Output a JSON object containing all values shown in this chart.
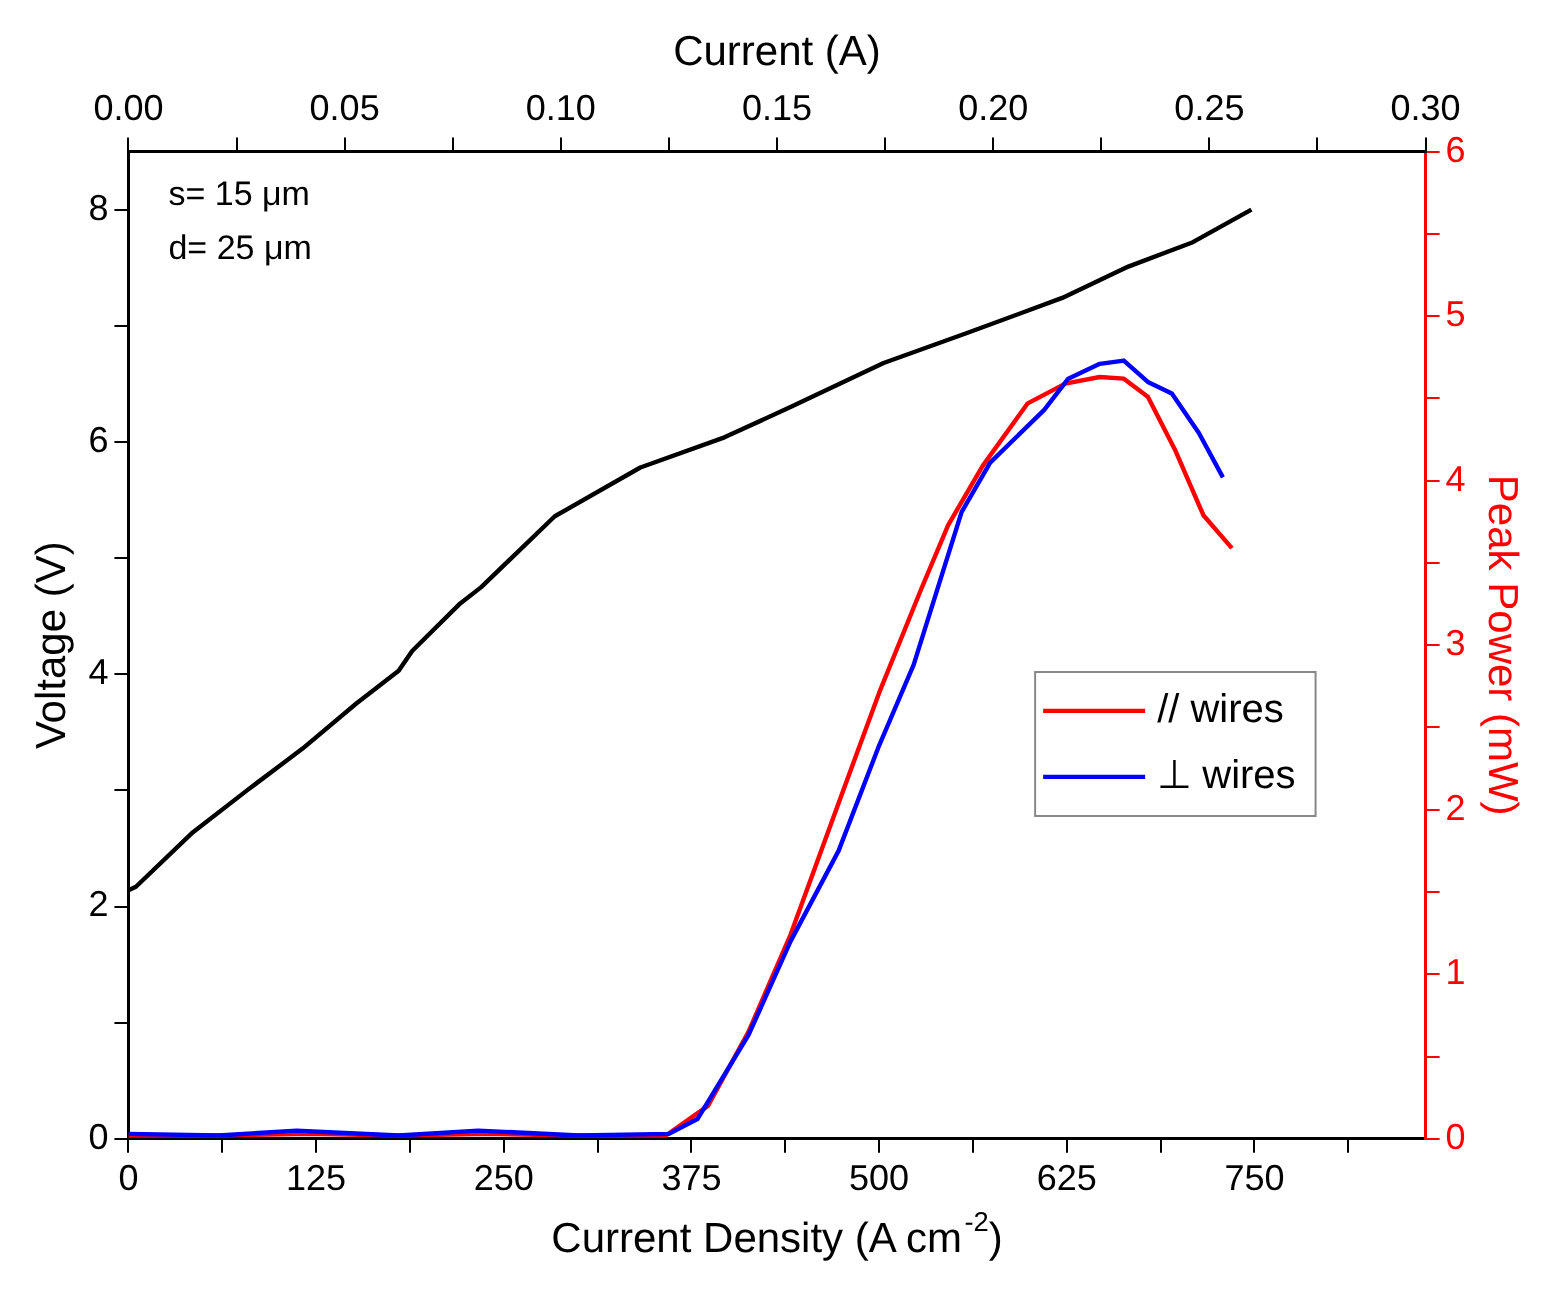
{
  "chart_data": {
    "type": "line",
    "xlabel": "Current Density (A cm$^{-2}$)",
    "ylabel": "Voltage (V)",
    "y2label": "Peak Power (mW)",
    "x2label": "Current (A)",
    "xlim": [
      0,
      864
    ],
    "xticks": [
      0,
      {
        "value": 62.5,
        "label": null
      },
      125,
      {
        "value": 187.5,
        "label": null
      },
      250,
      {
        "value": 312.5,
        "label": null
      },
      375,
      {
        "value": 437.5,
        "label": null
      },
      500,
      {
        "value": 562.5,
        "label": null
      },
      625,
      {
        "value": 687.5,
        "label": null
      },
      750,
      {
        "value": 812.5,
        "label": null
      }
    ],
    "ylim": [
      0,
      8.5
    ],
    "yticks": [
      0,
      {
        "value": 1,
        "label": null
      },
      2,
      {
        "value": 3,
        "label": null
      },
      4,
      {
        "value": 5,
        "label": null
      },
      6,
      {
        "value": 7,
        "label": null
      },
      8
    ],
    "y2lim": [
      0,
      6
    ],
    "y2ticks": [
      0,
      {
        "value": 0.5,
        "label": null
      },
      1,
      {
        "value": 1.5,
        "label": null
      },
      2,
      {
        "value": 2.5,
        "label": null
      },
      3,
      {
        "value": 3.5,
        "label": null
      },
      4,
      {
        "value": 4.5,
        "label": null
      },
      5,
      {
        "value": 5.5,
        "label": null
      },
      6
    ],
    "x2lim": [
      0,
      0.3
    ],
    "x2ticks": [
      {
        "value": 0,
        "label": "0.00"
      },
      {
        "value": 0.025,
        "label": null
      },
      {
        "value": 0.05,
        "label": "0.05"
      },
      {
        "value": 0.075,
        "label": null
      },
      {
        "value": 0.1,
        "label": "0.10"
      },
      {
        "value": 0.125,
        "label": null
      },
      {
        "value": 0.15,
        "label": "0.15"
      },
      {
        "value": 0.175,
        "label": null
      },
      {
        "value": 0.2,
        "label": "0.20"
      },
      {
        "value": 0.225,
        "label": null
      },
      {
        "value": 0.25,
        "label": "0.25"
      },
      {
        "value": 0.275,
        "label": null
      },
      {
        "value": 0.3,
        "label": "0.30"
      }
    ],
    "grid": false,
    "legend": "right",
    "marker": "none",
    "line_style": "solid",
    "annotations": [
      "s= 15 μm",
      "d= 25 μm"
    ],
    "series": [
      {
        "color": "#000000",
        "x": [
          0,
          5,
          43,
          79,
          116,
          152,
          180,
          189,
          221,
          235,
          284,
          341,
          397,
          441,
          503,
          559,
          622,
          666,
          709,
          748
        ],
        "values": [
          2.14,
          2.17,
          2.64,
          3.0,
          3.36,
          3.75,
          4.03,
          4.2,
          4.61,
          4.75,
          5.36,
          5.78,
          6.04,
          6.3,
          6.68,
          6.94,
          7.24,
          7.51,
          7.72,
          8.0
        ]
      },
      {
        "name": "// wires",
        "color": "#ff0000",
        "axis": "y2",
        "x": [
          0,
          60,
          120,
          180,
          240,
          300,
          358,
          386,
          413,
          441,
          473,
          500,
          528,
          546,
          569,
          599,
          624,
          647,
          663,
          679,
          697,
          716,
          735
        ],
        "values": [
          0.02,
          0.02,
          0.03,
          0.02,
          0.03,
          0.02,
          0.02,
          0.2,
          0.65,
          1.24,
          2.04,
          2.71,
          3.34,
          3.73,
          4.09,
          4.47,
          4.59,
          4.63,
          4.62,
          4.51,
          4.19,
          3.79,
          3.59
        ]
      },
      {
        "name": "⊥ wires",
        "color": "#0000ff",
        "axis": "y2",
        "x": [
          0,
          60,
          112,
          180,
          233,
          300,
          360,
          379,
          413,
          441,
          473,
          500,
          523,
          555,
          574,
          610,
          626,
          647,
          663,
          679,
          695,
          713,
          729
        ],
        "values": [
          0.03,
          0.02,
          0.05,
          0.02,
          0.05,
          0.02,
          0.03,
          0.12,
          0.63,
          1.2,
          1.75,
          2.39,
          2.88,
          3.81,
          4.11,
          4.43,
          4.62,
          4.71,
          4.73,
          4.6,
          4.53,
          4.29,
          4.02
        ]
      }
    ]
  }
}
